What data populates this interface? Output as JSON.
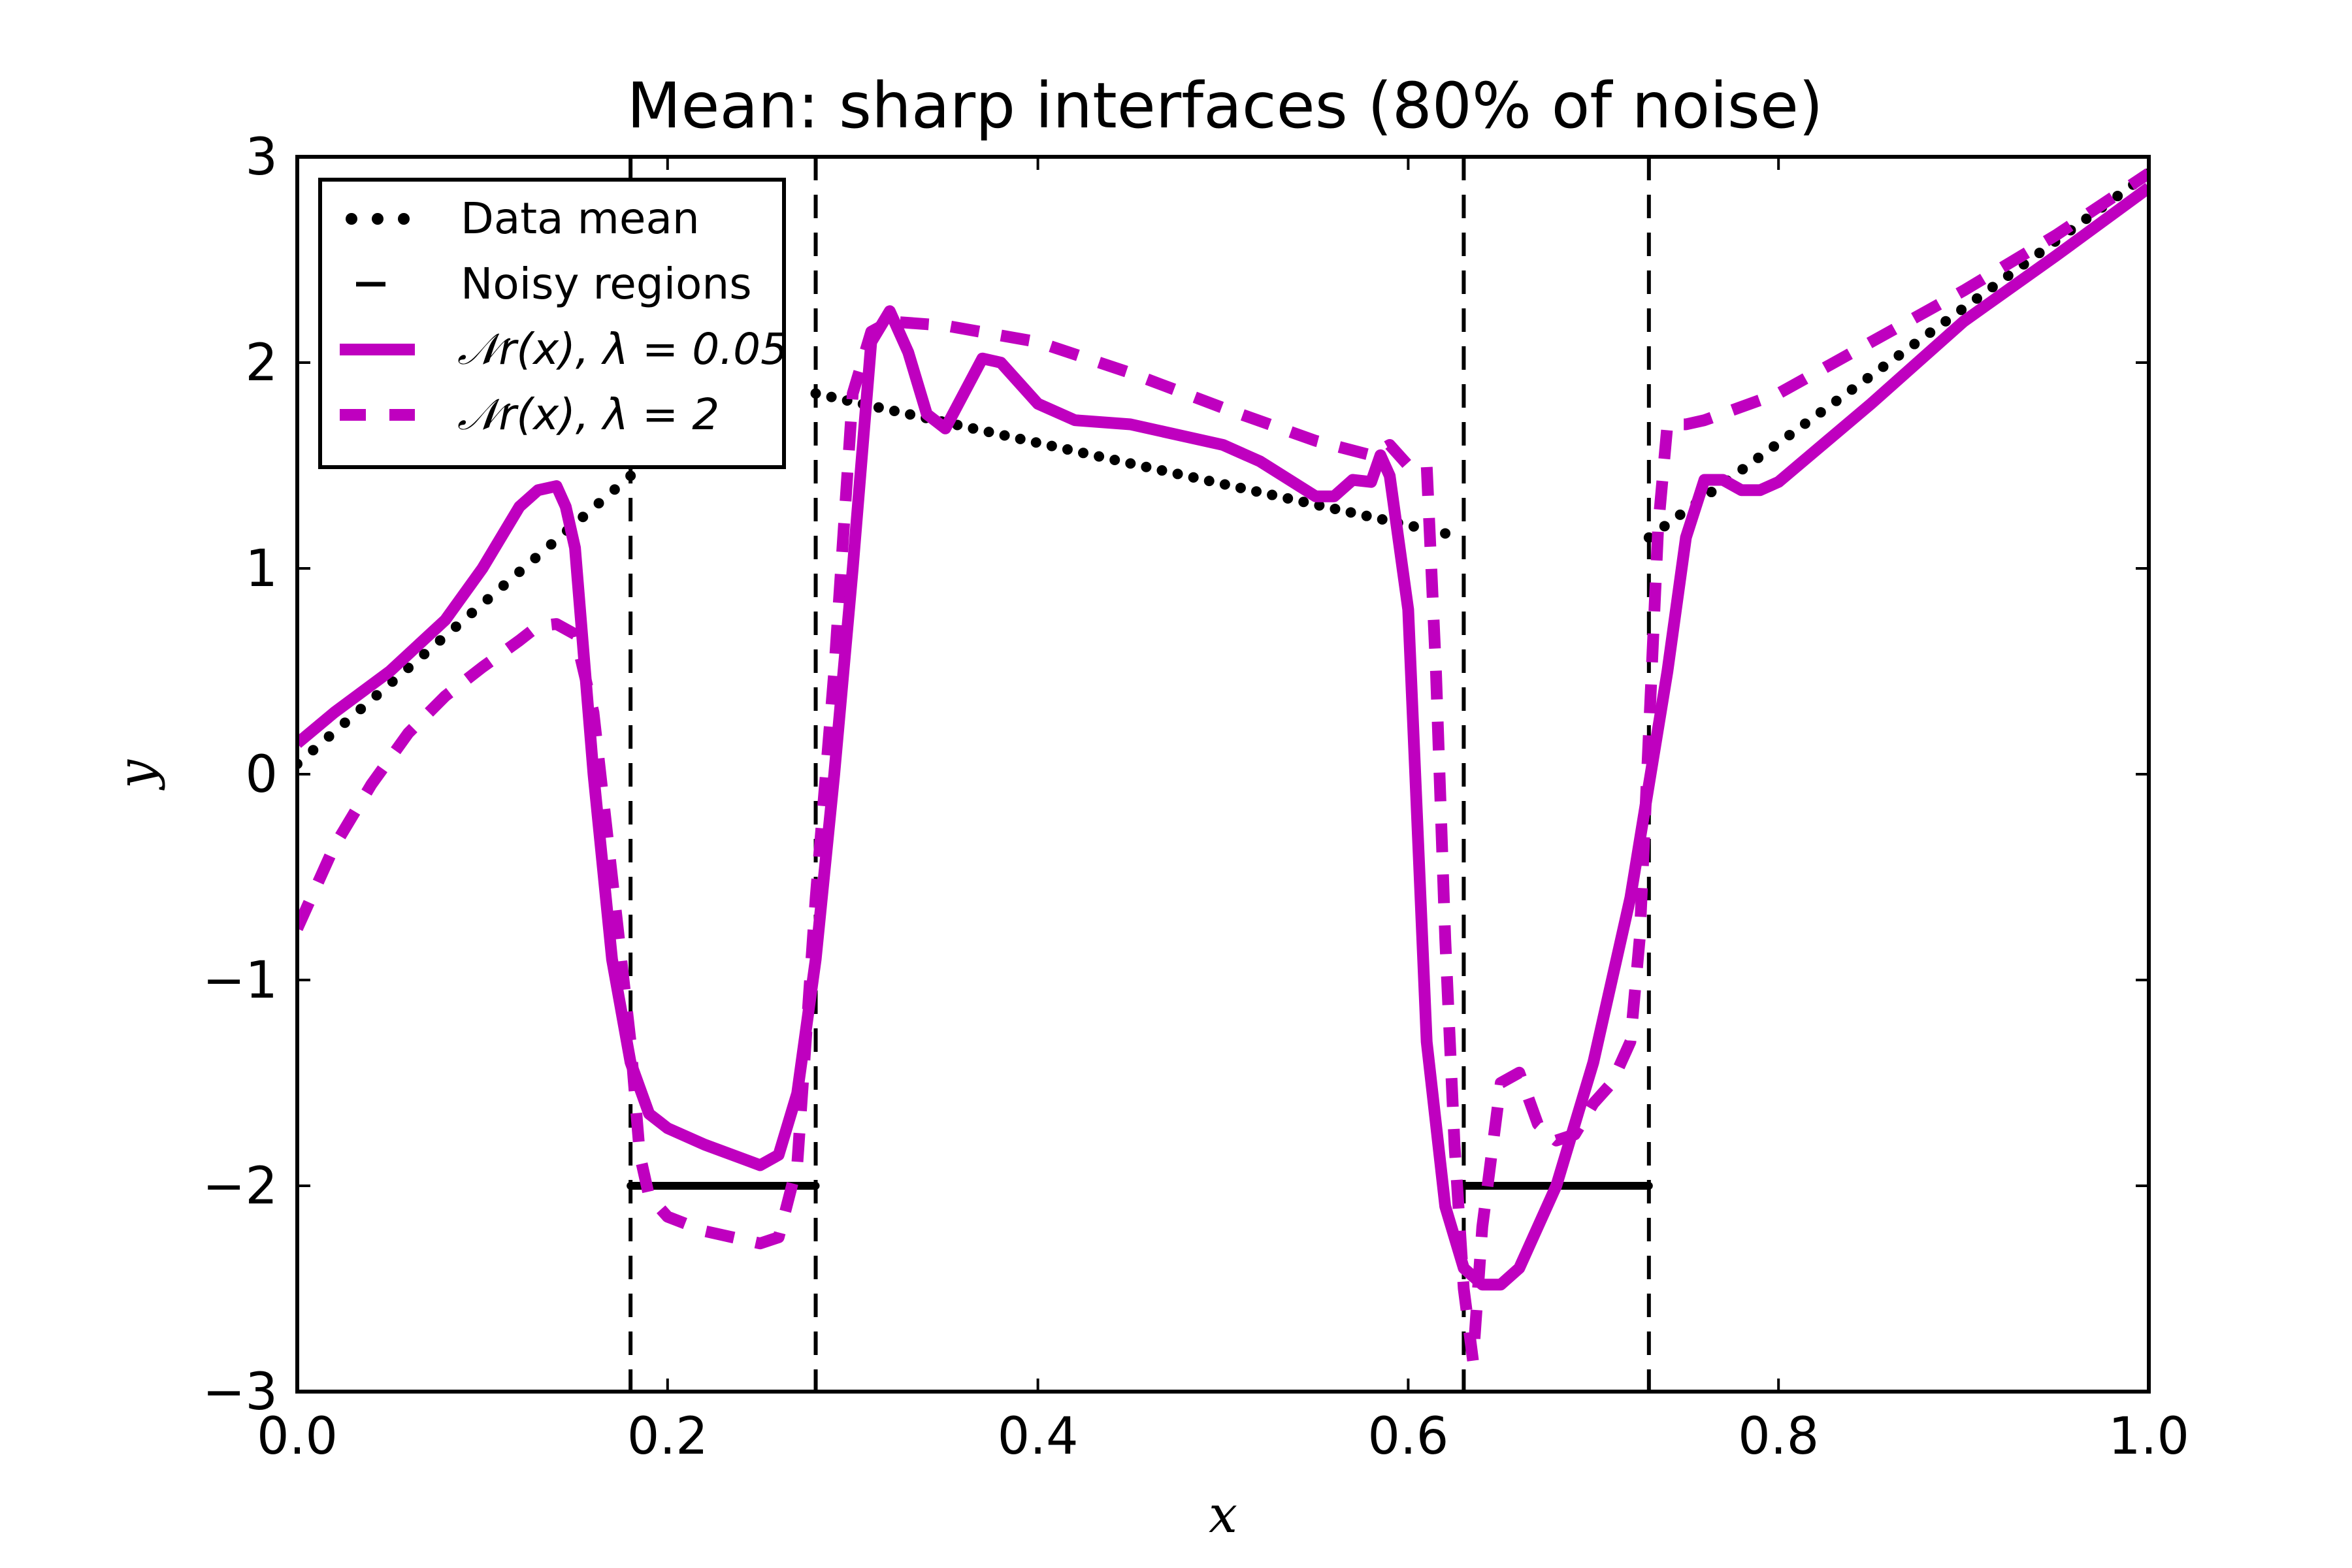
{
  "chart_data": {
    "type": "line",
    "title": "Mean: sharp interfaces (80% of noise)",
    "xlabel": "x",
    "ylabel": "y",
    "xlim": [
      0.0,
      1.0
    ],
    "ylim": [
      -3,
      3
    ],
    "xticks": [
      0.0,
      0.2,
      0.4,
      0.6,
      0.8,
      1.0
    ],
    "xtick_labels": [
      "0.0",
      "0.2",
      "0.4",
      "0.6",
      "0.8",
      "1.0"
    ],
    "yticks": [
      -3,
      -2,
      -1,
      0,
      1,
      2,
      3
    ],
    "ytick_labels": [
      "−3",
      "−2",
      "−1",
      "0",
      "1",
      "2",
      "3"
    ],
    "legend_position": "top-left",
    "legend": [
      {
        "label": "Data mean",
        "style": "dotted-markers",
        "color": "#000000"
      },
      {
        "label": "Noisy regions",
        "style": "dashed",
        "color": "#000000"
      },
      {
        "label": "𝒩r(x),  λ = 0.05",
        "style": "solid",
        "color": "#bf00bf"
      },
      {
        "label": "𝒩r(x),  λ = 2",
        "style": "dashed-thick",
        "color": "#bf00bf"
      }
    ],
    "noisy_regions": [
      {
        "x0": 0.18,
        "x1": 0.28,
        "y": -2
      },
      {
        "x0": 0.63,
        "x1": 0.73,
        "y": -2
      }
    ],
    "series": [
      {
        "name": "Data mean",
        "style": "dotted",
        "color": "#000000",
        "segments": [
          {
            "x": [
              0.0,
              0.18
            ],
            "y": [
              0.05,
              1.45
            ]
          },
          {
            "x": [
              0.28,
              0.62
            ],
            "y": [
              1.85,
              1.17
            ]
          },
          {
            "x": [
              0.73,
              1.0
            ],
            "y": [
              1.15,
              2.92
            ]
          }
        ]
      },
      {
        "name": "N_r(x), lambda=0.05",
        "style": "solid",
        "color": "#bf00bf",
        "x": [
          0.0,
          0.02,
          0.05,
          0.08,
          0.1,
          0.12,
          0.13,
          0.14,
          0.145,
          0.15,
          0.16,
          0.17,
          0.18,
          0.19,
          0.2,
          0.22,
          0.25,
          0.26,
          0.27,
          0.28,
          0.29,
          0.3,
          0.31,
          0.32,
          0.33,
          0.34,
          0.35,
          0.36,
          0.37,
          0.38,
          0.4,
          0.42,
          0.45,
          0.5,
          0.52,
          0.55,
          0.56,
          0.57,
          0.58,
          0.585,
          0.59,
          0.6,
          0.61,
          0.62,
          0.63,
          0.64,
          0.65,
          0.66,
          0.68,
          0.7,
          0.72,
          0.74,
          0.75,
          0.76,
          0.77,
          0.78,
          0.79,
          0.8,
          0.85,
          0.9,
          0.95,
          1.0
        ],
        "y": [
          0.15,
          0.3,
          0.5,
          0.75,
          1.0,
          1.3,
          1.38,
          1.4,
          1.3,
          1.1,
          0.0,
          -0.9,
          -1.4,
          -1.65,
          -1.72,
          -1.8,
          -1.9,
          -1.85,
          -1.55,
          -0.9,
          0.0,
          1.0,
          2.1,
          2.25,
          2.05,
          1.75,
          1.68,
          1.85,
          2.02,
          2.0,
          1.8,
          1.72,
          1.7,
          1.6,
          1.52,
          1.35,
          1.35,
          1.43,
          1.42,
          1.55,
          1.45,
          0.8,
          -1.3,
          -2.1,
          -2.4,
          -2.48,
          -2.48,
          -2.4,
          -2.0,
          -1.4,
          -0.6,
          0.5,
          1.15,
          1.43,
          1.43,
          1.38,
          1.38,
          1.42,
          1.8,
          2.2,
          2.52,
          2.85
        ]
      },
      {
        "name": "N_r(x), lambda=2",
        "style": "dashed",
        "color": "#bf00bf",
        "x": [
          0.0,
          0.02,
          0.04,
          0.06,
          0.08,
          0.1,
          0.12,
          0.13,
          0.14,
          0.15,
          0.16,
          0.17,
          0.18,
          0.185,
          0.19,
          0.2,
          0.22,
          0.25,
          0.26,
          0.27,
          0.28,
          0.29,
          0.3,
          0.31,
          0.32,
          0.35,
          0.4,
          0.45,
          0.5,
          0.55,
          0.58,
          0.59,
          0.6,
          0.61,
          0.615,
          0.62,
          0.625,
          0.63,
          0.635,
          0.64,
          0.65,
          0.66,
          0.67,
          0.68,
          0.69,
          0.7,
          0.71,
          0.72,
          0.725,
          0.73,
          0.735,
          0.74,
          0.75,
          0.76,
          0.8,
          0.85,
          0.9,
          0.95,
          1.0
        ],
        "y": [
          -0.75,
          -0.35,
          -0.05,
          0.2,
          0.38,
          0.52,
          0.65,
          0.72,
          0.73,
          0.68,
          0.3,
          -0.5,
          -1.3,
          -1.85,
          -2.05,
          -2.15,
          -2.22,
          -2.28,
          -2.25,
          -1.9,
          -0.6,
          0.5,
          1.85,
          2.15,
          2.2,
          2.18,
          2.1,
          1.95,
          1.78,
          1.62,
          1.55,
          1.6,
          1.5,
          1.5,
          0.5,
          -0.8,
          -1.8,
          -2.5,
          -2.85,
          -2.2,
          -1.5,
          -1.45,
          -1.7,
          -1.78,
          -1.75,
          -1.6,
          -1.5,
          -1.3,
          -0.8,
          0.2,
          1.2,
          1.7,
          1.7,
          1.72,
          1.85,
          2.1,
          2.35,
          2.62,
          2.92
        ]
      }
    ]
  }
}
